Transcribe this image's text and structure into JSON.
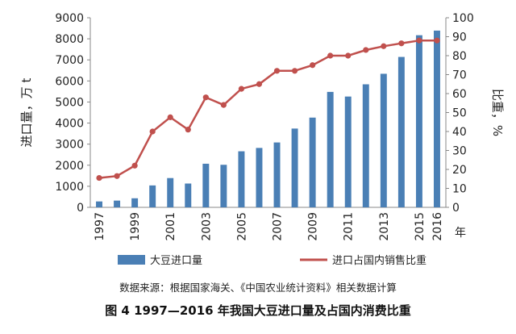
{
  "chart_data": {
    "type": "bar",
    "categories": [
      "1997",
      "1998",
      "1999",
      "2000",
      "2001",
      "2002",
      "2003",
      "2004",
      "2005",
      "2006",
      "2007",
      "2008",
      "2009",
      "2010",
      "2011",
      "2012",
      "2013",
      "2014",
      "2015",
      "2016"
    ],
    "x_tick_labels": [
      "1997",
      "1999",
      "2001",
      "2003",
      "2005",
      "2007",
      "2009",
      "2011",
      "2013",
      "2015",
      "2016"
    ],
    "x_unit_label": "年",
    "series": [
      {
        "name": "大豆进口量",
        "type": "bar",
        "axis": "left",
        "color": "#4a7fb5",
        "values": [
          280,
          320,
          430,
          1040,
          1390,
          1130,
          2070,
          2020,
          2660,
          2820,
          3080,
          3740,
          4260,
          5480,
          5260,
          5840,
          6340,
          7140,
          8170,
          8390
        ]
      },
      {
        "name": "进口占国内销售比重",
        "type": "line",
        "axis": "right",
        "color": "#c0504d",
        "values": [
          15.5,
          16.5,
          22,
          40,
          47.5,
          41,
          58,
          54,
          62.5,
          65,
          72,
          72,
          75,
          80,
          80,
          83,
          85,
          86.5,
          88,
          88
        ]
      }
    ],
    "y_left": {
      "label": "进口量，万 t",
      "min": 0,
      "max": 9000,
      "ticks": [
        0,
        1000,
        2000,
        3000,
        4000,
        5000,
        6000,
        7000,
        8000,
        9000
      ]
    },
    "y_right": {
      "label": "比重，%",
      "min": 0,
      "max": 100,
      "ticks": [
        0,
        10,
        20,
        30,
        40,
        50,
        60,
        70,
        80,
        90,
        100
      ]
    },
    "grid": false,
    "legend_position": "bottom"
  },
  "source_note": "数据来源：根据国家海关、《中国农业统计资料》相关数据计算",
  "caption": "图 4  1997—2016 年我国大豆进口量及占国内消费比重"
}
